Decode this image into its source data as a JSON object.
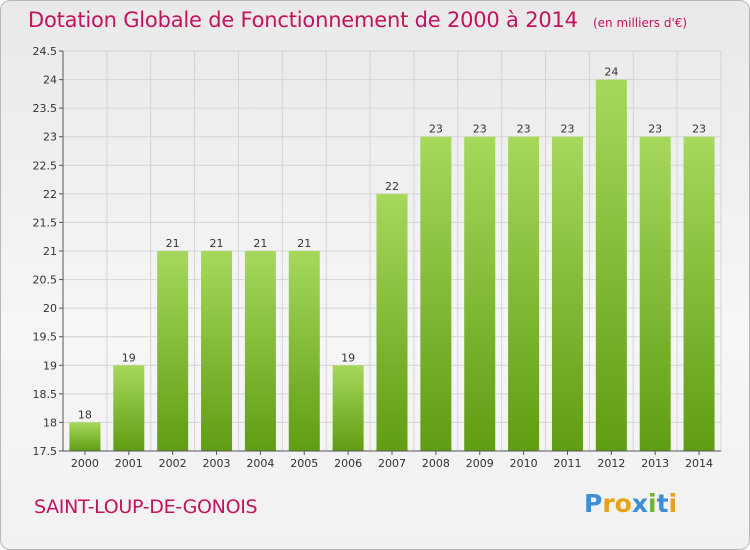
{
  "title": "Dotation Globale de Fonctionnement de 2000 à 2014",
  "subtitle": "(en milliers d'€)",
  "commune": "SAINT-LOUP-DE-GONOIS",
  "logo": {
    "text": "Proxiti",
    "colors": [
      "#3c8fd4",
      "#e8a21a",
      "#e8a21a",
      "#3c8fd4",
      "#6fb52c",
      "#3c8fd4",
      "#e8a21a"
    ]
  },
  "colors": {
    "bar_light": "#a6d85c",
    "bar_dark": "#5f9d12",
    "title": "#c4125f",
    "grid": "#d4d4d4"
  },
  "chart_data": {
    "type": "bar",
    "categories": [
      "2000",
      "2001",
      "2002",
      "2003",
      "2004",
      "2005",
      "2006",
      "2007",
      "2008",
      "2009",
      "2010",
      "2011",
      "2012",
      "2013",
      "2014"
    ],
    "values": [
      18,
      19,
      21,
      21,
      21,
      21,
      19,
      22,
      23,
      23,
      23,
      23,
      24,
      23,
      23
    ],
    "labels": [
      "18",
      "19",
      "21",
      "21",
      "21",
      "21",
      "19",
      "22",
      "23",
      "23",
      "23",
      "23",
      "24",
      "23",
      "23"
    ],
    "title": "Dotation Globale de Fonctionnement de 2000 à 2014",
    "ylim": [
      17.5,
      24.5
    ],
    "yticks": [
      17.5,
      18,
      18.5,
      19,
      19.5,
      20,
      20.5,
      21,
      21.5,
      22,
      22.5,
      23,
      23.5,
      24,
      24.5
    ],
    "grid": true
  }
}
